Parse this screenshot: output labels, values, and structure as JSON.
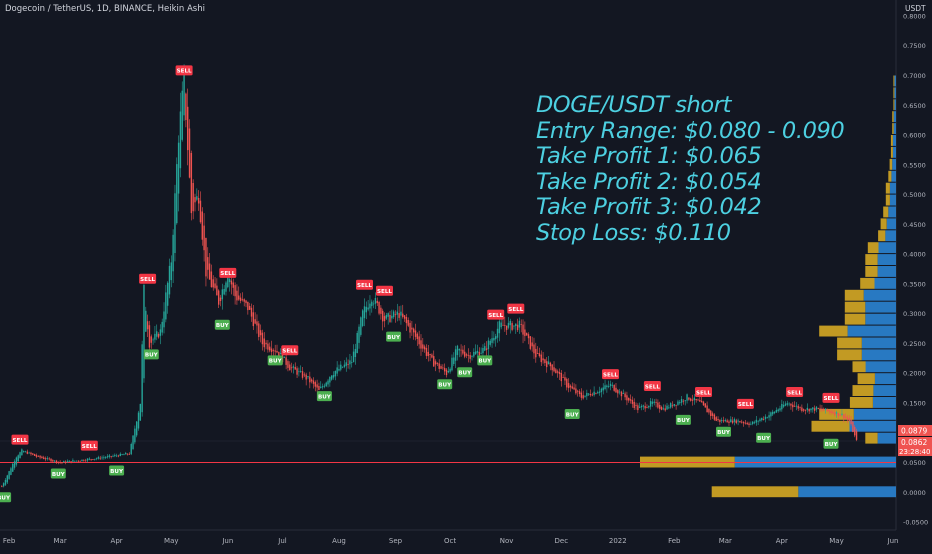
{
  "header": {
    "title": "Dogecoin / TetherUS, 1D, BINANCE, Heikin Ashi",
    "currency": "USDT"
  },
  "annotation": {
    "lines": [
      "DOGE/USDT short",
      "Entry Range: $0.080 - 0.090",
      "Take Profit 1: $0.065",
      "Take Profit 2: $0.054",
      "Take Profit 3: $0.042",
      "Stop Loss: $0.110"
    ]
  },
  "price_labels": {
    "current": "0.0879",
    "close": "0.0862",
    "countdown": "23:28:40"
  },
  "colors": {
    "background": "#131722",
    "up": "#26a69a",
    "down": "#ef5350",
    "annotation": "#4dd0e1",
    "horizontal_line": "#f23645",
    "profile_blue": "#2879c2",
    "profile_gold": "#c29a23"
  },
  "chart_data": {
    "type": "candlestick",
    "title": "Dogecoin / TetherUS, 1D, BINANCE, Heikin Ashi",
    "ylim": [
      -0.06,
      0.81
    ],
    "y_ticks": [
      "0.8000",
      "0.7500",
      "0.7000",
      "0.6500",
      "0.6000",
      "0.5500",
      "0.5000",
      "0.4500",
      "0.4000",
      "0.3500",
      "0.3000",
      "0.2500",
      "0.2000",
      "0.1500",
      "0.1000",
      "0.0500",
      "0.0000",
      "-0.0500"
    ],
    "x_ticks": [
      "Feb",
      "Mar",
      "Apr",
      "May",
      "Jun",
      "Jul",
      "Aug",
      "Sep",
      "Oct",
      "Nov",
      "Dec",
      "2022",
      "Feb",
      "Mar",
      "Apr",
      "May",
      "Jun"
    ],
    "price_path": [
      {
        "date": "2021-01-28",
        "price": 0.01
      },
      {
        "date": "2021-02-05",
        "price": 0.06
      },
      {
        "date": "2021-02-08",
        "price": 0.07
      },
      {
        "date": "2021-02-16",
        "price": 0.06
      },
      {
        "date": "2021-03-01",
        "price": 0.05
      },
      {
        "date": "2021-03-15",
        "price": 0.055
      },
      {
        "date": "2021-03-28",
        "price": 0.06
      },
      {
        "date": "2021-04-08",
        "price": 0.065
      },
      {
        "date": "2021-04-14",
        "price": 0.15
      },
      {
        "date": "2021-04-16",
        "price": 0.34
      },
      {
        "date": "2021-04-19",
        "price": 0.25
      },
      {
        "date": "2021-04-25",
        "price": 0.27
      },
      {
        "date": "2021-05-01",
        "price": 0.39
      },
      {
        "date": "2021-05-05",
        "price": 0.6
      },
      {
        "date": "2021-05-08",
        "price": 0.69
      },
      {
        "date": "2021-05-12",
        "price": 0.47
      },
      {
        "date": "2021-05-16",
        "price": 0.5
      },
      {
        "date": "2021-05-20",
        "price": 0.37
      },
      {
        "date": "2021-05-27",
        "price": 0.32
      },
      {
        "date": "2021-06-01",
        "price": 0.37
      },
      {
        "date": "2021-06-05",
        "price": 0.33
      },
      {
        "date": "2021-06-12",
        "price": 0.31
      },
      {
        "date": "2021-06-20",
        "price": 0.25
      },
      {
        "date": "2021-06-27",
        "price": 0.24
      },
      {
        "date": "2021-07-05",
        "price": 0.21
      },
      {
        "date": "2021-07-15",
        "price": 0.19
      },
      {
        "date": "2021-07-21",
        "price": 0.17
      },
      {
        "date": "2021-07-28",
        "price": 0.2
      },
      {
        "date": "2021-08-08",
        "price": 0.22
      },
      {
        "date": "2021-08-14",
        "price": 0.3
      },
      {
        "date": "2021-08-19",
        "price": 0.33
      },
      {
        "date": "2021-08-26",
        "price": 0.29
      },
      {
        "date": "2021-09-03",
        "price": 0.3
      },
      {
        "date": "2021-09-10",
        "price": 0.27
      },
      {
        "date": "2021-09-21",
        "price": 0.22
      },
      {
        "date": "2021-09-29",
        "price": 0.2
      },
      {
        "date": "2021-10-05",
        "price": 0.24
      },
      {
        "date": "2021-10-11",
        "price": 0.23
      },
      {
        "date": "2021-10-20",
        "price": 0.24
      },
      {
        "date": "2021-10-28",
        "price": 0.28
      },
      {
        "date": "2021-11-08",
        "price": 0.28
      },
      {
        "date": "2021-11-17",
        "price": 0.23
      },
      {
        "date": "2021-11-26",
        "price": 0.21
      },
      {
        "date": "2021-12-04",
        "price": 0.18
      },
      {
        "date": "2021-12-12",
        "price": 0.16
      },
      {
        "date": "2021-12-20",
        "price": 0.17
      },
      {
        "date": "2021-12-28",
        "price": 0.18
      },
      {
        "date": "2022-01-05",
        "price": 0.16
      },
      {
        "date": "2022-01-12",
        "price": 0.14
      },
      {
        "date": "2022-01-20",
        "price": 0.15
      },
      {
        "date": "2022-01-26",
        "price": 0.14
      },
      {
        "date": "2022-02-08",
        "price": 0.16
      },
      {
        "date": "2022-02-15",
        "price": 0.15
      },
      {
        "date": "2022-02-24",
        "price": 0.12
      },
      {
        "date": "2022-03-07",
        "price": 0.12
      },
      {
        "date": "2022-03-15",
        "price": 0.115
      },
      {
        "date": "2022-03-25",
        "price": 0.13
      },
      {
        "date": "2022-04-04",
        "price": 0.15
      },
      {
        "date": "2022-04-12",
        "price": 0.14
      },
      {
        "date": "2022-04-20",
        "price": 0.14
      },
      {
        "date": "2022-04-28",
        "price": 0.135
      },
      {
        "date": "2022-05-04",
        "price": 0.13
      },
      {
        "date": "2022-05-08",
        "price": 0.12
      },
      {
        "date": "2022-05-12",
        "price": 0.086
      }
    ],
    "signals": [
      {
        "label": "BUY",
        "date": "2021-01-29",
        "price": 0.01
      },
      {
        "label": "SELL",
        "date": "2021-02-07",
        "price": 0.07
      },
      {
        "label": "BUY",
        "date": "2021-02-28",
        "price": 0.05
      },
      {
        "label": "SELL",
        "date": "2021-03-17",
        "price": 0.06
      },
      {
        "label": "BUY",
        "date": "2021-04-01",
        "price": 0.055
      },
      {
        "label": "SELL",
        "date": "2021-05-08",
        "price": 0.69
      },
      {
        "label": "SELL",
        "date": "2021-04-18",
        "price": 0.34
      },
      {
        "label": "BUY",
        "date": "2021-04-20",
        "price": 0.25
      },
      {
        "label": "BUY",
        "date": "2021-05-29",
        "price": 0.3
      },
      {
        "label": "SELL",
        "date": "2021-06-01",
        "price": 0.35
      },
      {
        "label": "BUY",
        "date": "2021-06-27",
        "price": 0.24
      },
      {
        "label": "SELL",
        "date": "2021-07-05",
        "price": 0.22
      },
      {
        "label": "BUY",
        "date": "2021-07-24",
        "price": 0.18
      },
      {
        "label": "SELL",
        "date": "2021-08-15",
        "price": 0.33
      },
      {
        "label": "SELL",
        "date": "2021-08-26",
        "price": 0.32
      },
      {
        "label": "BUY",
        "date": "2021-08-31",
        "price": 0.28
      },
      {
        "label": "BUY",
        "date": "2021-09-28",
        "price": 0.2
      },
      {
        "label": "BUY",
        "date": "2021-10-09",
        "price": 0.22
      },
      {
        "label": "BUY",
        "date": "2021-10-20",
        "price": 0.24
      },
      {
        "label": "SELL",
        "date": "2021-10-26",
        "price": 0.28
      },
      {
        "label": "SELL",
        "date": "2021-11-06",
        "price": 0.29
      },
      {
        "label": "BUY",
        "date": "2021-12-07",
        "price": 0.15
      },
      {
        "label": "SELL",
        "date": "2021-12-28",
        "price": 0.18
      },
      {
        "label": "SELL",
        "date": "2022-01-20",
        "price": 0.16
      },
      {
        "label": "BUY",
        "date": "2022-02-06",
        "price": 0.14
      },
      {
        "label": "SELL",
        "date": "2022-02-17",
        "price": 0.15
      },
      {
        "label": "BUY",
        "date": "2022-02-28",
        "price": 0.12
      },
      {
        "label": "SELL",
        "date": "2022-03-12",
        "price": 0.13
      },
      {
        "label": "BUY",
        "date": "2022-03-22",
        "price": 0.11
      },
      {
        "label": "SELL",
        "date": "2022-04-08",
        "price": 0.15
      },
      {
        "label": "SELL",
        "date": "2022-04-28",
        "price": 0.14
      },
      {
        "label": "BUY",
        "date": "2022-04-28",
        "price": 0.1
      }
    ],
    "horizontal_line": 0.05,
    "volume_profile": [
      {
        "low": -0.01,
        "high": 0.01,
        "total": 0.72,
        "up_share": 0.53
      },
      {
        "low": 0.04,
        "high": 0.06,
        "total": 1.0,
        "up_share": 0.63
      },
      {
        "low": 0.08,
        "high": 0.1,
        "total": 0.12,
        "up_share": 0.6
      },
      {
        "low": 0.1,
        "high": 0.12,
        "total": 0.33,
        "up_share": 0.55
      },
      {
        "low": 0.12,
        "high": 0.14,
        "total": 0.3,
        "up_share": 0.55
      },
      {
        "low": 0.14,
        "high": 0.16,
        "total": 0.18,
        "up_share": 0.5
      },
      {
        "low": 0.16,
        "high": 0.18,
        "total": 0.17,
        "up_share": 0.52
      },
      {
        "low": 0.18,
        "high": 0.2,
        "total": 0.15,
        "up_share": 0.55
      },
      {
        "low": 0.2,
        "high": 0.22,
        "total": 0.17,
        "up_share": 0.7
      },
      {
        "low": 0.22,
        "high": 0.24,
        "total": 0.23,
        "up_share": 0.58
      },
      {
        "low": 0.24,
        "high": 0.26,
        "total": 0.23,
        "up_share": 0.58
      },
      {
        "low": 0.26,
        "high": 0.28,
        "total": 0.3,
        "up_share": 0.63
      },
      {
        "low": 0.28,
        "high": 0.3,
        "total": 0.2,
        "up_share": 0.6
      },
      {
        "low": 0.3,
        "high": 0.32,
        "total": 0.2,
        "up_share": 0.6
      },
      {
        "low": 0.32,
        "high": 0.34,
        "total": 0.2,
        "up_share": 0.63
      },
      {
        "low": 0.34,
        "high": 0.36,
        "total": 0.14,
        "up_share": 0.6
      },
      {
        "low": 0.36,
        "high": 0.38,
        "total": 0.12,
        "up_share": 0.6
      },
      {
        "low": 0.38,
        "high": 0.4,
        "total": 0.12,
        "up_share": 0.6
      },
      {
        "low": 0.4,
        "high": 0.42,
        "total": 0.11,
        "up_share": 0.62
      },
      {
        "low": 0.42,
        "high": 0.44,
        "total": 0.07,
        "up_share": 0.6
      },
      {
        "low": 0.44,
        "high": 0.46,
        "total": 0.06,
        "up_share": 0.6
      },
      {
        "low": 0.46,
        "high": 0.48,
        "total": 0.05,
        "up_share": 0.6
      },
      {
        "low": 0.48,
        "high": 0.5,
        "total": 0.04,
        "up_share": 0.6
      },
      {
        "low": 0.5,
        "high": 0.52,
        "total": 0.04,
        "up_share": 0.6
      },
      {
        "low": 0.52,
        "high": 0.54,
        "total": 0.03,
        "up_share": 0.6
      },
      {
        "low": 0.54,
        "high": 0.56,
        "total": 0.025,
        "up_share": 0.6
      },
      {
        "low": 0.56,
        "high": 0.58,
        "total": 0.02,
        "up_share": 0.6
      },
      {
        "low": 0.58,
        "high": 0.6,
        "total": 0.02,
        "up_share": 0.6
      },
      {
        "low": 0.6,
        "high": 0.62,
        "total": 0.015,
        "up_share": 0.6
      },
      {
        "low": 0.62,
        "high": 0.64,
        "total": 0.015,
        "up_share": 0.6
      },
      {
        "low": 0.64,
        "high": 0.66,
        "total": 0.01,
        "up_share": 0.6
      },
      {
        "low": 0.66,
        "high": 0.68,
        "total": 0.01,
        "up_share": 0.6
      },
      {
        "low": 0.68,
        "high": 0.7,
        "total": 0.01,
        "up_share": 0.6
      }
    ],
    "grid": false,
    "legend": "none"
  }
}
